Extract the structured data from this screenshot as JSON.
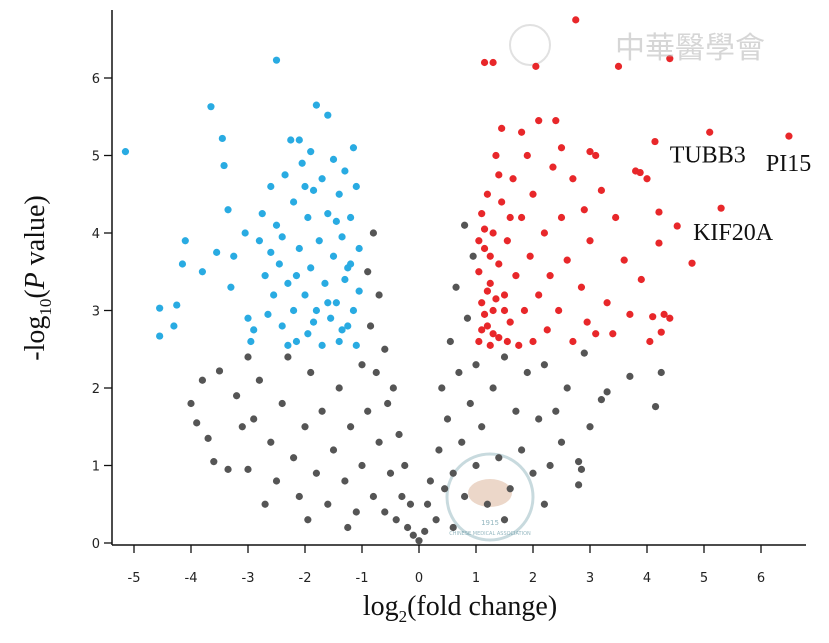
{
  "chart_data": {
    "type": "scatter",
    "title": "",
    "xlabel_main": "log",
    "xlabel_sub": "2",
    "xlabel_rest": "(fold change)",
    "ylabel_pre": "-log",
    "ylabel_sub": "10",
    "ylabel_open": "(",
    "ylabel_italic": "P",
    "ylabel_rest": " value)",
    "xlim": [
      -5.4,
      6.77
    ],
    "ylim": [
      0,
      6.88
    ],
    "xticks": [
      "-5",
      "-4",
      "-3",
      "-2",
      "-1",
      "0",
      "1",
      "2",
      "3",
      "4",
      "5",
      "6"
    ],
    "yticks": [
      "0",
      "1",
      "2",
      "3",
      "4",
      "5",
      "6"
    ],
    "grid": false,
    "colors": {
      "down": "#29abe2",
      "up": "#e8272a",
      "ns": "#555555"
    },
    "annotations": [
      {
        "text": "TUBB3",
        "x": 5.1,
        "y": 5.3
      },
      {
        "text": "PI15",
        "x": 6.49,
        "y": 5.25
      },
      {
        "text": "KIF20A",
        "x": 5.3,
        "y": 4.32
      }
    ],
    "series": [
      {
        "key": "ns",
        "points": [
          [
            -4.0,
            1.8
          ],
          [
            -3.8,
            2.1
          ],
          [
            -3.7,
            1.35
          ],
          [
            -3.6,
            1.05
          ],
          [
            -3.35,
            0.95
          ],
          [
            -3.0,
            0.95
          ],
          [
            -3.1,
            1.5
          ],
          [
            -3.5,
            2.22
          ],
          [
            -3.2,
            1.9
          ],
          [
            -2.8,
            2.1
          ],
          [
            -2.6,
            1.3
          ],
          [
            -2.5,
            0.8
          ],
          [
            -2.4,
            1.8
          ],
          [
            -2.3,
            2.4
          ],
          [
            -2.2,
            1.1
          ],
          [
            -2.1,
            0.6
          ],
          [
            -2.0,
            1.5
          ],
          [
            -1.9,
            2.2
          ],
          [
            -1.8,
            0.9
          ],
          [
            -1.7,
            1.7
          ],
          [
            -1.6,
            0.5
          ],
          [
            -1.5,
            1.2
          ],
          [
            -1.4,
            2.0
          ],
          [
            -1.3,
            0.8
          ],
          [
            -1.2,
            1.5
          ],
          [
            -1.1,
            0.4
          ],
          [
            -1.0,
            2.3
          ],
          [
            -1.0,
            1.0
          ],
          [
            -0.9,
            3.5
          ],
          [
            -0.9,
            1.7
          ],
          [
            -0.85,
            2.8
          ],
          [
            -0.8,
            0.6
          ],
          [
            -0.8,
            4.0
          ],
          [
            -0.75,
            2.2
          ],
          [
            -0.7,
            1.3
          ],
          [
            -0.7,
            3.2
          ],
          [
            -0.6,
            0.4
          ],
          [
            -0.6,
            2.5
          ],
          [
            -0.55,
            1.8
          ],
          [
            -0.5,
            0.9
          ],
          [
            -0.45,
            2.0
          ],
          [
            -0.4,
            0.3
          ],
          [
            -0.35,
            1.4
          ],
          [
            -0.3,
            0.6
          ],
          [
            -0.25,
            1.0
          ],
          [
            -0.2,
            0.2
          ],
          [
            -0.15,
            0.5
          ],
          [
            -0.1,
            0.1
          ],
          [
            0.0,
            0.03
          ],
          [
            0.1,
            0.15
          ],
          [
            0.15,
            0.5
          ],
          [
            0.2,
            0.8
          ],
          [
            0.3,
            0.3
          ],
          [
            0.35,
            1.2
          ],
          [
            0.4,
            2.0
          ],
          [
            0.45,
            0.7
          ],
          [
            0.5,
            1.6
          ],
          [
            0.55,
            2.6
          ],
          [
            0.6,
            0.9
          ],
          [
            0.65,
            3.3
          ],
          [
            0.7,
            2.2
          ],
          [
            0.75,
            1.3
          ],
          [
            0.8,
            4.1
          ],
          [
            0.8,
            0.6
          ],
          [
            0.85,
            2.9
          ],
          [
            0.9,
            1.8
          ],
          [
            0.95,
            3.7
          ],
          [
            1.0,
            1.0
          ],
          [
            1.0,
            2.3
          ],
          [
            1.1,
            1.5
          ],
          [
            1.2,
            0.5
          ],
          [
            1.3,
            2.0
          ],
          [
            1.4,
            1.1
          ],
          [
            1.5,
            2.4
          ],
          [
            1.6,
            0.7
          ],
          [
            1.7,
            1.7
          ],
          [
            1.8,
            1.2
          ],
          [
            1.9,
            2.2
          ],
          [
            2.0,
            0.9
          ],
          [
            2.1,
            1.6
          ],
          [
            2.2,
            2.3
          ],
          [
            2.3,
            1.0
          ],
          [
            2.4,
            1.7
          ],
          [
            2.5,
            1.3
          ],
          [
            2.6,
            2.0
          ],
          [
            2.8,
            1.05
          ],
          [
            2.85,
            0.95
          ],
          [
            2.8,
            0.75
          ],
          [
            3.0,
            1.5
          ],
          [
            3.2,
            1.85
          ],
          [
            3.3,
            1.95
          ],
          [
            3.7,
            2.15
          ],
          [
            4.15,
            1.76
          ],
          [
            4.25,
            2.2
          ],
          [
            -2.9,
            1.6
          ],
          [
            -2.7,
            0.5
          ],
          [
            -1.95,
            0.3
          ],
          [
            -1.25,
            0.2
          ],
          [
            0.6,
            0.2
          ],
          [
            1.5,
            0.3
          ],
          [
            2.2,
            0.5
          ],
          [
            -3.9,
            1.55
          ],
          [
            -3.0,
            2.4
          ],
          [
            2.9,
            2.45
          ]
        ]
      },
      {
        "key": "down",
        "points": [
          [
            -5.15,
            5.05
          ],
          [
            -4.55,
            3.03
          ],
          [
            -4.55,
            2.67
          ],
          [
            -4.3,
            2.8
          ],
          [
            -4.25,
            3.07
          ],
          [
            -4.1,
            3.9
          ],
          [
            -4.15,
            3.6
          ],
          [
            -3.8,
            3.5
          ],
          [
            -3.65,
            5.63
          ],
          [
            -3.55,
            3.75
          ],
          [
            -3.45,
            5.22
          ],
          [
            -3.42,
            4.87
          ],
          [
            -3.35,
            4.3
          ],
          [
            -3.3,
            3.3
          ],
          [
            -3.25,
            3.7
          ],
          [
            -3.05,
            4.0
          ],
          [
            -3.0,
            2.9
          ],
          [
            -2.9,
            2.75
          ],
          [
            -2.95,
            2.6
          ],
          [
            -2.8,
            3.9
          ],
          [
            -2.75,
            4.25
          ],
          [
            -2.7,
            3.45
          ],
          [
            -2.65,
            2.95
          ],
          [
            -2.6,
            4.6
          ],
          [
            -2.55,
            3.2
          ],
          [
            -2.5,
            6.23
          ],
          [
            -2.5,
            4.1
          ],
          [
            -2.45,
            3.6
          ],
          [
            -2.4,
            2.8
          ],
          [
            -2.35,
            4.75
          ],
          [
            -2.3,
            3.35
          ],
          [
            -2.25,
            5.2
          ],
          [
            -2.2,
            4.4
          ],
          [
            -2.2,
            3.0
          ],
          [
            -2.15,
            2.6
          ],
          [
            -2.1,
            5.2
          ],
          [
            -2.1,
            3.8
          ],
          [
            -2.05,
            4.9
          ],
          [
            -2.0,
            3.2
          ],
          [
            -1.95,
            4.2
          ],
          [
            -1.95,
            2.7
          ],
          [
            -1.9,
            5.05
          ],
          [
            -1.9,
            3.55
          ],
          [
            -1.85,
            4.55
          ],
          [
            -1.8,
            5.65
          ],
          [
            -1.8,
            3.0
          ],
          [
            -1.75,
            3.9
          ],
          [
            -1.7,
            4.7
          ],
          [
            -1.7,
            2.55
          ],
          [
            -1.65,
            3.35
          ],
          [
            -1.6,
            5.52
          ],
          [
            -1.6,
            4.25
          ],
          [
            -1.55,
            2.9
          ],
          [
            -1.5,
            3.7
          ],
          [
            -1.5,
            4.95
          ],
          [
            -1.45,
            3.1
          ],
          [
            -1.4,
            4.5
          ],
          [
            -1.4,
            2.6
          ],
          [
            -1.35,
            3.95
          ],
          [
            -1.3,
            3.4
          ],
          [
            -1.3,
            4.8
          ],
          [
            -1.25,
            2.8
          ],
          [
            -1.2,
            4.2
          ],
          [
            -1.2,
            3.6
          ],
          [
            -1.15,
            5.1
          ],
          [
            -1.15,
            3.0
          ],
          [
            -1.1,
            4.6
          ],
          [
            -1.1,
            2.55
          ],
          [
            -1.05,
            3.8
          ],
          [
            -1.05,
            3.25
          ],
          [
            -2.6,
            3.75
          ],
          [
            -2.3,
            2.55
          ],
          [
            -2.0,
            4.6
          ],
          [
            -1.6,
            3.1
          ],
          [
            -1.35,
            2.75
          ],
          [
            -2.4,
            3.95
          ],
          [
            -1.85,
            2.85
          ],
          [
            -1.45,
            4.15
          ],
          [
            -2.15,
            3.45
          ],
          [
            -1.25,
            3.55
          ]
        ]
      },
      {
        "key": "up",
        "points": [
          [
            2.75,
            6.75
          ],
          [
            1.15,
            6.2
          ],
          [
            1.3,
            6.2
          ],
          [
            2.05,
            6.15
          ],
          [
            3.5,
            6.15
          ],
          [
            4.4,
            6.25
          ],
          [
            2.1,
            5.45
          ],
          [
            2.4,
            5.45
          ],
          [
            1.45,
            5.35
          ],
          [
            1.8,
            5.3
          ],
          [
            2.5,
            5.1
          ],
          [
            3.0,
            5.05
          ],
          [
            3.1,
            5.0
          ],
          [
            4.14,
            5.18
          ],
          [
            5.1,
            5.3
          ],
          [
            6.49,
            5.25
          ],
          [
            5.3,
            4.32
          ],
          [
            4.53,
            4.09
          ],
          [
            4.79,
            3.61
          ],
          [
            4.21,
            4.27
          ],
          [
            4.21,
            3.87
          ],
          [
            3.8,
            4.8
          ],
          [
            3.88,
            4.78
          ],
          [
            4.0,
            4.7
          ],
          [
            4.1,
            2.92
          ],
          [
            4.3,
            2.95
          ],
          [
            4.4,
            2.9
          ],
          [
            4.25,
            2.72
          ],
          [
            4.05,
            2.6
          ],
          [
            3.7,
            2.95
          ],
          [
            3.9,
            3.4
          ],
          [
            3.6,
            3.65
          ],
          [
            3.45,
            4.2
          ],
          [
            3.3,
            3.1
          ],
          [
            3.2,
            4.55
          ],
          [
            3.1,
            2.7
          ],
          [
            3.0,
            3.9
          ],
          [
            2.9,
            4.3
          ],
          [
            2.85,
            3.3
          ],
          [
            2.7,
            4.7
          ],
          [
            2.7,
            2.6
          ],
          [
            2.6,
            3.65
          ],
          [
            2.5,
            4.2
          ],
          [
            2.45,
            3.0
          ],
          [
            2.35,
            4.85
          ],
          [
            2.3,
            3.45
          ],
          [
            2.25,
            2.75
          ],
          [
            2.2,
            4.0
          ],
          [
            2.1,
            3.2
          ],
          [
            2.0,
            4.5
          ],
          [
            2.0,
            2.6
          ],
          [
            1.95,
            3.7
          ],
          [
            1.9,
            5.0
          ],
          [
            1.85,
            3.0
          ],
          [
            1.8,
            4.2
          ],
          [
            1.75,
            2.55
          ],
          [
            1.7,
            3.45
          ],
          [
            1.65,
            4.7
          ],
          [
            1.6,
            2.85
          ],
          [
            1.55,
            3.9
          ],
          [
            1.5,
            3.2
          ],
          [
            1.45,
            4.4
          ],
          [
            1.4,
            2.65
          ],
          [
            1.4,
            3.6
          ],
          [
            1.35,
            5.0
          ],
          [
            1.3,
            3.0
          ],
          [
            1.3,
            4.0
          ],
          [
            1.25,
            2.55
          ],
          [
            1.25,
            3.35
          ],
          [
            1.2,
            4.5
          ],
          [
            1.2,
            2.8
          ],
          [
            1.15,
            3.8
          ],
          [
            1.1,
            3.1
          ],
          [
            1.1,
            4.25
          ],
          [
            1.05,
            2.6
          ],
          [
            1.05,
            3.5
          ],
          [
            1.15,
            2.95
          ],
          [
            1.2,
            3.25
          ],
          [
            1.3,
            2.7
          ],
          [
            1.35,
            3.15
          ],
          [
            1.1,
            2.75
          ],
          [
            1.25,
            3.7
          ],
          [
            1.15,
            4.05
          ],
          [
            1.4,
            4.75
          ],
          [
            1.55,
            2.6
          ],
          [
            1.05,
            3.9
          ],
          [
            1.6,
            4.2
          ],
          [
            1.5,
            3.0
          ],
          [
            3.4,
            2.7
          ],
          [
            2.95,
            2.85
          ]
        ]
      }
    ]
  },
  "watermark": {
    "logo_text": "中華醫學會",
    "seal_text": "CHINESE MEDICAL ASSOCIATION",
    "seal_year": "1915"
  }
}
